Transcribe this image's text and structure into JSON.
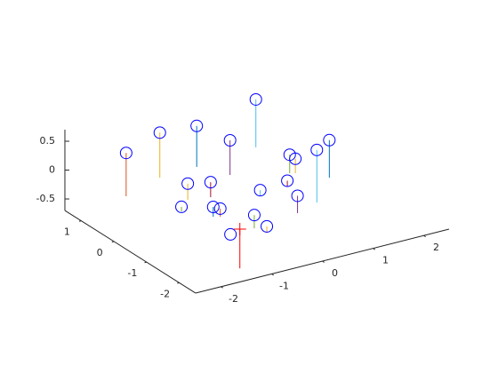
{
  "chart_data": {
    "type": "stem3",
    "xlim": [
      -2.5,
      2.5
    ],
    "ylim": [
      -2.5,
      1.5
    ],
    "zlim": [
      -0.7,
      0.7
    ],
    "xticks": [
      -2,
      -1,
      0,
      1,
      2
    ],
    "yticks": [
      -2,
      -1,
      0,
      1
    ],
    "zticks": [
      -0.5,
      0,
      0.5
    ],
    "series": [
      {
        "marker": "o",
        "color": "#0000ff",
        "marker_position": "point",
        "x": [
          -2.22,
          -1.33,
          -0.57,
          0.7,
          -0.28,
          -1.43,
          -1.05,
          -1.78,
          -1.45,
          -1.35,
          -0.31,
          -1.13,
          -1.05,
          -1.6,
          0.27,
          -0.18,
          0.6,
          0.68,
          0.33,
          1.06
        ],
        "y": [
          0.06,
          0.41,
          0.46,
          0.62,
          -0.11,
          -0.6,
          -0.71,
          -0.95,
          -1.41,
          -1.47,
          -1.08,
          -2.17,
          -2.43,
          -2.17,
          -1.01,
          -2.02,
          -0.57,
          -0.62,
          -1.82,
          -1.07
        ],
        "z": [
          0.75,
          0.78,
          0.71,
          0.83,
          0.6,
          0.28,
          0.26,
          0.08,
          0.17,
          0.14,
          0.09,
          0.23,
          0.11,
          0,
          0.1,
          0.3,
          0.32,
          0.25,
          0.91,
          0.65
        ],
        "stem_colors": [
          "#d95319",
          "#edb120",
          "#0072bd",
          "#4dbeee",
          "#7e2f8e",
          "#edb120",
          "#a2142f",
          "#77ac30",
          "#0072bd",
          "#d95319",
          "#4dbeee",
          "#77ac30",
          "#edb120",
          "#0072bd",
          "#a2142f",
          "#7e2f8e",
          "#77ac30",
          "#edb120",
          "#4dbeee",
          "#0072bd"
        ]
      },
      {
        "marker": "+",
        "color": "#ff0000",
        "marker_position": "base",
        "x": [
          -1.35
        ],
        "y": [
          -2.07
        ],
        "z": [
          -0.68
        ],
        "stem_colors": [
          "#ff0000"
        ]
      }
    ]
  }
}
